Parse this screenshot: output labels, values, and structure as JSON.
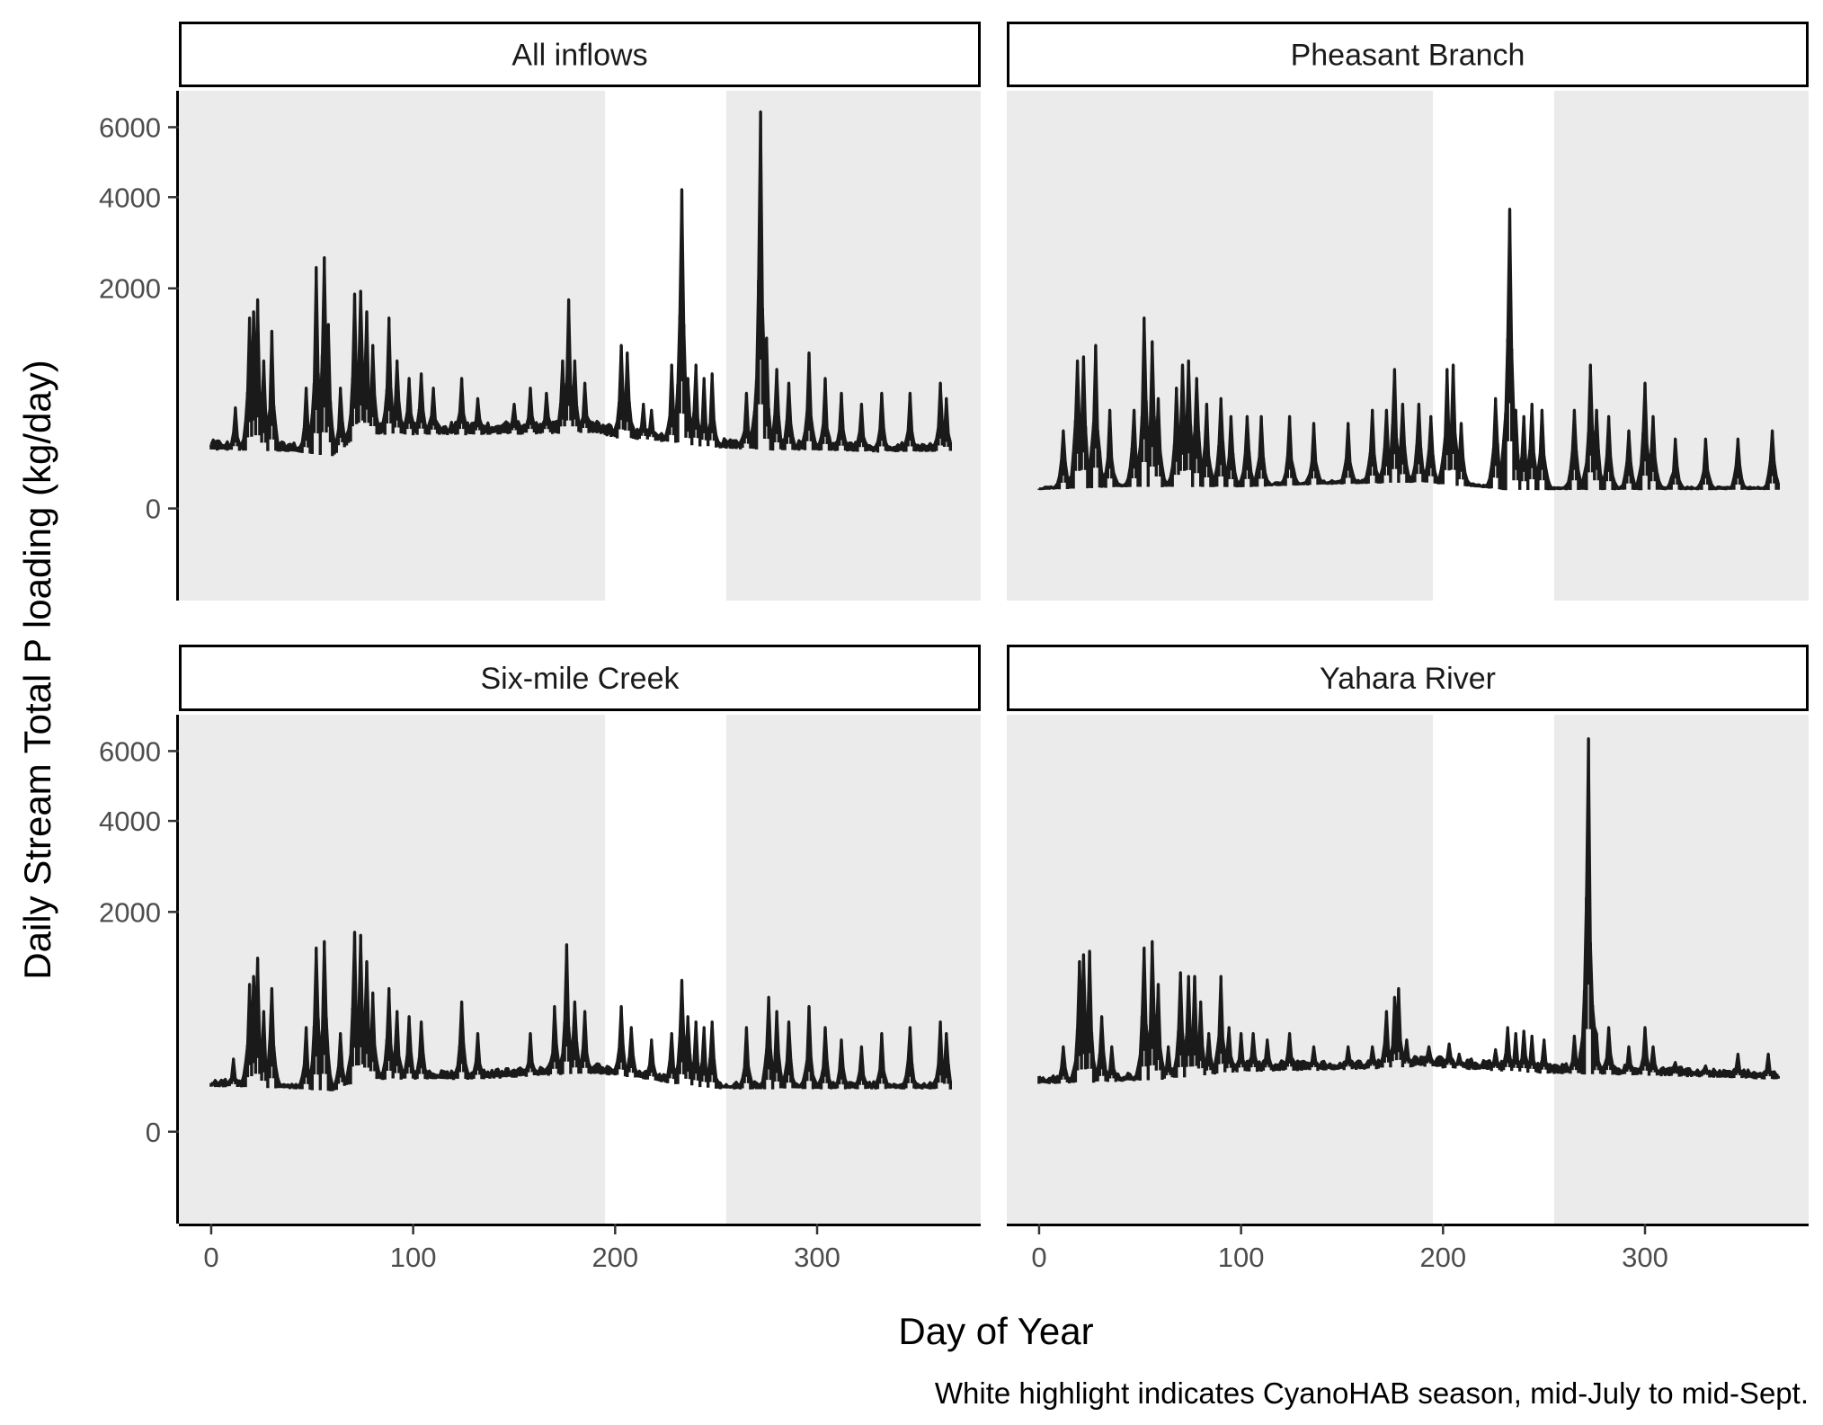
{
  "chart_data": {
    "type": "line",
    "facet_type": "faceted line chart (2x2 small multiples), shared axes",
    "xlabel": "Day of Year",
    "ylabel": "Daily Stream Total P loading (kg/day)",
    "caption": "White highlight indicates CyanoHAB season, mid-July to mid-Sept.",
    "xlim": [
      -16,
      381
    ],
    "ylim": [
      -350,
      7200
    ],
    "y_scale": "square-root",
    "x_ticks": [
      0,
      100,
      200,
      300
    ],
    "x_tick_labels": [
      "0",
      "100",
      "200",
      "300"
    ],
    "y_ticks": [
      0,
      2000,
      4000,
      6000
    ],
    "y_tick_labels": [
      "0",
      "2000",
      "4000",
      "6000"
    ],
    "highlight": {
      "start_day": 195,
      "end_day": 255,
      "fill": "#ffffff"
    },
    "panel_background": "#ebebeb",
    "line_color": "#1a1a1a",
    "grid": false,
    "panels": [
      {
        "title": "All inflows",
        "baseline": [
          [
            0,
            150
          ],
          [
            40,
            140
          ],
          [
            60,
            120
          ],
          [
            75,
            240
          ],
          [
            130,
            240
          ],
          [
            190,
            250
          ],
          [
            200,
            220
          ],
          [
            230,
            190
          ],
          [
            250,
            160
          ],
          [
            280,
            150
          ],
          [
            330,
            140
          ],
          [
            366,
            140
          ]
        ],
        "peaks": [
          [
            12,
            420
          ],
          [
            19,
            1500
          ],
          [
            21,
            1600
          ],
          [
            23,
            1800
          ],
          [
            26,
            900
          ],
          [
            30,
            1300
          ],
          [
            47,
            600
          ],
          [
            52,
            2400
          ],
          [
            56,
            2600
          ],
          [
            58,
            1400
          ],
          [
            64,
            600
          ],
          [
            71,
            1900
          ],
          [
            74,
            1950
          ],
          [
            77,
            1600
          ],
          [
            80,
            1100
          ],
          [
            88,
            1500
          ],
          [
            92,
            900
          ],
          [
            98,
            700
          ],
          [
            104,
            750
          ],
          [
            110,
            600
          ],
          [
            124,
            700
          ],
          [
            132,
            500
          ],
          [
            150,
            450
          ],
          [
            158,
            600
          ],
          [
            166,
            550
          ],
          [
            174,
            900
          ],
          [
            177,
            1800
          ],
          [
            180,
            900
          ],
          [
            185,
            650
          ],
          [
            203,
            1100
          ],
          [
            206,
            1000
          ],
          [
            214,
            450
          ],
          [
            218,
            400
          ],
          [
            228,
            850
          ],
          [
            233,
            4200
          ],
          [
            236,
            700
          ],
          [
            240,
            850
          ],
          [
            244,
            700
          ],
          [
            248,
            750
          ],
          [
            265,
            550
          ],
          [
            272,
            6500
          ],
          [
            275,
            1200
          ],
          [
            280,
            800
          ],
          [
            286,
            650
          ],
          [
            296,
            1000
          ],
          [
            304,
            700
          ],
          [
            312,
            550
          ],
          [
            322,
            450
          ],
          [
            332,
            550
          ],
          [
            346,
            550
          ],
          [
            361,
            650
          ],
          [
            364,
            500
          ]
        ]
      },
      {
        "title": "Pheasant Branch",
        "baseline": [
          [
            0,
            15
          ],
          [
            40,
            20
          ],
          [
            60,
            20
          ],
          [
            100,
            20
          ],
          [
            190,
            30
          ],
          [
            200,
            25
          ],
          [
            230,
            15
          ],
          [
            300,
            15
          ],
          [
            366,
            15
          ]
        ],
        "peaks": [
          [
            12,
            250
          ],
          [
            19,
            900
          ],
          [
            22,
            950
          ],
          [
            28,
            1100
          ],
          [
            35,
            400
          ],
          [
            47,
            400
          ],
          [
            52,
            1500
          ],
          [
            56,
            1150
          ],
          [
            59,
            500
          ],
          [
            68,
            600
          ],
          [
            71,
            850
          ],
          [
            74,
            900
          ],
          [
            78,
            700
          ],
          [
            83,
            450
          ],
          [
            90,
            500
          ],
          [
            95,
            350
          ],
          [
            103,
            350
          ],
          [
            110,
            350
          ],
          [
            124,
            350
          ],
          [
            136,
            300
          ],
          [
            153,
            300
          ],
          [
            165,
            400
          ],
          [
            172,
            400
          ],
          [
            176,
            800
          ],
          [
            180,
            450
          ],
          [
            188,
            450
          ],
          [
            194,
            350
          ],
          [
            202,
            800
          ],
          [
            205,
            850
          ],
          [
            209,
            300
          ],
          [
            226,
            500
          ],
          [
            233,
            3700
          ],
          [
            236,
            400
          ],
          [
            240,
            350
          ],
          [
            244,
            450
          ],
          [
            249,
            400
          ],
          [
            265,
            400
          ],
          [
            273,
            850
          ],
          [
            276,
            400
          ],
          [
            282,
            350
          ],
          [
            292,
            250
          ],
          [
            300,
            650
          ],
          [
            304,
            350
          ],
          [
            315,
            200
          ],
          [
            330,
            200
          ],
          [
            346,
            200
          ],
          [
            363,
            250
          ]
        ]
      },
      {
        "title": "Six-mile Creek",
        "baseline": [
          [
            0,
            90
          ],
          [
            40,
            80
          ],
          [
            60,
            70
          ],
          [
            75,
            120
          ],
          [
            130,
            120
          ],
          [
            190,
            150
          ],
          [
            200,
            140
          ],
          [
            230,
            100
          ],
          [
            250,
            80
          ],
          [
            300,
            80
          ],
          [
            366,
            80
          ]
        ],
        "peaks": [
          [
            11,
            220
          ],
          [
            19,
            900
          ],
          [
            21,
            1000
          ],
          [
            23,
            1250
          ],
          [
            26,
            600
          ],
          [
            30,
            850
          ],
          [
            47,
            450
          ],
          [
            52,
            1400
          ],
          [
            56,
            1500
          ],
          [
            64,
            400
          ],
          [
            71,
            1650
          ],
          [
            74,
            1600
          ],
          [
            77,
            1200
          ],
          [
            80,
            800
          ],
          [
            88,
            850
          ],
          [
            92,
            600
          ],
          [
            98,
            550
          ],
          [
            104,
            500
          ],
          [
            124,
            700
          ],
          [
            132,
            400
          ],
          [
            158,
            400
          ],
          [
            170,
            650
          ],
          [
            176,
            1450
          ],
          [
            180,
            700
          ],
          [
            185,
            600
          ],
          [
            203,
            650
          ],
          [
            208,
            450
          ],
          [
            218,
            350
          ],
          [
            228,
            400
          ],
          [
            233,
            950
          ],
          [
            236,
            550
          ],
          [
            240,
            500
          ],
          [
            244,
            450
          ],
          [
            248,
            500
          ],
          [
            265,
            450
          ],
          [
            276,
            750
          ],
          [
            280,
            600
          ],
          [
            286,
            500
          ],
          [
            296,
            650
          ],
          [
            304,
            450
          ],
          [
            312,
            350
          ],
          [
            322,
            300
          ],
          [
            332,
            400
          ],
          [
            346,
            450
          ],
          [
            361,
            500
          ],
          [
            364,
            400
          ]
        ]
      },
      {
        "title": "Yahara River",
        "baseline": [
          [
            0,
            100
          ],
          [
            40,
            110
          ],
          [
            60,
            120
          ],
          [
            100,
            160
          ],
          [
            160,
            170
          ],
          [
            190,
            190
          ],
          [
            200,
            180
          ],
          [
            230,
            160
          ],
          [
            250,
            150
          ],
          [
            300,
            140
          ],
          [
            366,
            120
          ]
        ],
        "peaks": [
          [
            12,
            300
          ],
          [
            20,
            1200
          ],
          [
            22,
            1300
          ],
          [
            25,
            1350
          ],
          [
            31,
            550
          ],
          [
            36,
            300
          ],
          [
            52,
            1400
          ],
          [
            56,
            1500
          ],
          [
            59,
            900
          ],
          [
            64,
            300
          ],
          [
            70,
            1050
          ],
          [
            74,
            1000
          ],
          [
            77,
            1000
          ],
          [
            80,
            700
          ],
          [
            84,
            400
          ],
          [
            90,
            1000
          ],
          [
            94,
            450
          ],
          [
            100,
            400
          ],
          [
            106,
            400
          ],
          [
            113,
            350
          ],
          [
            124,
            400
          ],
          [
            136,
            300
          ],
          [
            153,
            300
          ],
          [
            165,
            300
          ],
          [
            172,
            600
          ],
          [
            176,
            750
          ],
          [
            178,
            850
          ],
          [
            182,
            350
          ],
          [
            193,
            300
          ],
          [
            203,
            320
          ],
          [
            208,
            250
          ],
          [
            226,
            280
          ],
          [
            232,
            450
          ],
          [
            236,
            400
          ],
          [
            240,
            420
          ],
          [
            244,
            380
          ],
          [
            250,
            350
          ],
          [
            265,
            380
          ],
          [
            272,
            6400
          ],
          [
            276,
            400
          ],
          [
            282,
            450
          ],
          [
            292,
            300
          ],
          [
            300,
            450
          ],
          [
            304,
            300
          ],
          [
            315,
            200
          ],
          [
            330,
            180
          ],
          [
            346,
            250
          ],
          [
            361,
            250
          ]
        ]
      }
    ]
  }
}
